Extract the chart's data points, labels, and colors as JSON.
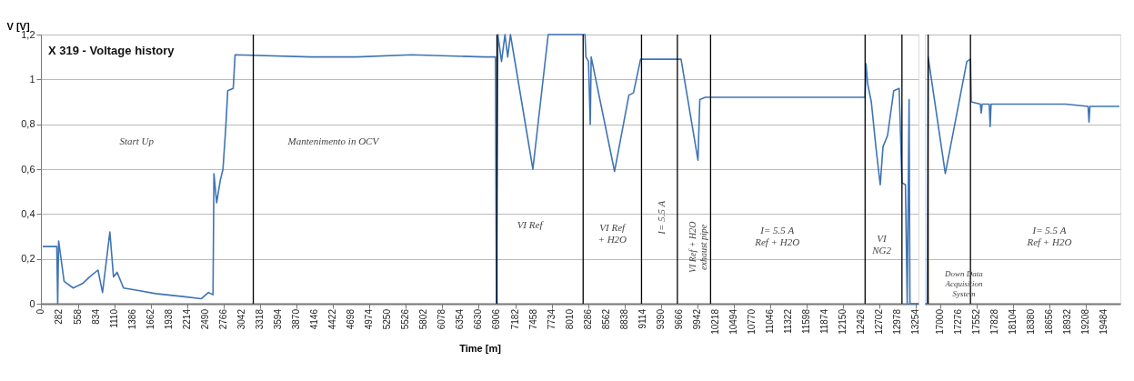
{
  "chart_data": [
    {
      "type": "line",
      "title": "X 319 - Voltage history",
      "xlabel": "Time [m]",
      "ylabel": "V [V]",
      "x": [
        28,
        240,
        254,
        268,
        351,
        489,
        630,
        740,
        864,
        933,
        1044,
        1099,
        1154,
        1251,
        1458,
        1737,
        2151,
        2427,
        2537,
        2606,
        2620,
        2661,
        2716,
        2757,
        2802,
        2829,
        2912,
        2940,
        4088,
        4778,
        5610,
        6717,
        6883,
        6897,
        6920,
        6975,
        7027,
        7069,
        7110,
        7450,
        7682,
        8239,
        8253,
        8292,
        8319,
        8333,
        8687,
        8904,
        8973,
        9081,
        9694,
        9950,
        9978,
        10061,
        12481,
        12495,
        12520,
        12575,
        12644,
        12710,
        12752,
        12821,
        12915,
        12997,
        13039,
        13092,
        13119,
        13147,
        13160,
        13290
      ],
      "series": [
        {
          "color": "#3f74b5",
          "values": [
            0.255,
            0.255,
            0,
            0.28,
            0.1,
            0.07,
            0.09,
            0.12,
            0.15,
            0.05,
            0.32,
            0.12,
            0.14,
            0.07,
            0.06,
            0.045,
            0.032,
            0.022,
            0.05,
            0.04,
            0.58,
            0.45,
            0.55,
            0.6,
            0.8,
            0.95,
            0.96,
            1.11,
            1.1,
            1.1,
            1.11,
            1.1,
            1.1,
            0,
            1.2,
            1.08,
            1.2,
            1.1,
            1.2,
            0.6,
            1.2,
            1.2,
            1.1,
            1.08,
            0.8,
            1.1,
            0.59,
            0.93,
            0.94,
            1.09,
            1.09,
            0.64,
            0.91,
            0.92,
            0.92,
            1.07,
            0.98,
            0.9,
            0.7,
            0.53,
            0.7,
            0.75,
            0.95,
            0.96,
            0.54,
            0.53,
            0,
            0.91,
            0,
            0
          ]
        }
      ],
      "xlim": [
        0,
        13290
      ],
      "xticks": [
        0,
        282,
        558,
        834,
        1110,
        1386,
        1662,
        1938,
        2214,
        2490,
        2766,
        3042,
        3318,
        3594,
        3870,
        4146,
        4422,
        4698,
        4974,
        5250,
        5526,
        5802,
        6078,
        6354,
        6630,
        6906,
        7182,
        7458,
        7734,
        8010,
        8286,
        8562,
        8838,
        9114,
        9390,
        9666,
        9942,
        10218,
        10494,
        10770,
        11046,
        11322,
        11598,
        11874,
        12150,
        12426,
        12702,
        12978,
        13254
      ],
      "ylim": [
        0,
        1.2
      ],
      "yticks": [
        0,
        {
          "value": 0.2,
          "label": "0,2"
        },
        {
          "value": 0.4,
          "label": "0,4"
        },
        {
          "value": 0.6,
          "label": "0,6"
        },
        {
          "value": 0.8,
          "label": "0,8"
        },
        1,
        {
          "value": 1.2,
          "label": "1,2"
        }
      ],
      "grid": "y",
      "ref_lines": [
        {
          "axis": "x",
          "value": 3216,
          "color": "#000000"
        },
        {
          "axis": "x",
          "value": 6906,
          "color": "#000000"
        },
        {
          "axis": "x",
          "value": 8211,
          "color": "#000000"
        },
        {
          "axis": "x",
          "value": 9095,
          "color": "#000000"
        },
        {
          "axis": "x",
          "value": 9638,
          "color": "#000000"
        },
        {
          "axis": "x",
          "value": 10141,
          "color": "#000000"
        },
        {
          "axis": "x",
          "value": 12481,
          "color": "#000000"
        },
        {
          "axis": "x",
          "value": 13039,
          "color": "#000000"
        }
      ],
      "annotations": [
        "Start Up",
        "Mantenimento in OCV",
        "VI Ref",
        "VI Ref\n+ H2O",
        "I= 5.5 A",
        "VI Ref + H2O\nexhaust pipe",
        "I= 5.5 A\nRef + H2O",
        "VI\nNG2"
      ]
    },
    {
      "type": "line",
      "x": [
        16780,
        16806,
        16820,
        17080,
        17406,
        17461,
        17472,
        17610,
        17624,
        17638,
        17745,
        17759,
        17773,
        17949,
        18902,
        19242,
        19256,
        19270,
        19716
      ],
      "series": [
        {
          "color": "#3f74b5",
          "values": [
            0,
            0,
            1.1,
            0.58,
            1.08,
            1.09,
            0.9,
            0.89,
            0.85,
            0.89,
            0.89,
            0.79,
            0.89,
            0.89,
            0.89,
            0.88,
            0.81,
            0.88,
            0.88
          ]
        }
      ],
      "xlim": [
        16770,
        19730
      ],
      "xticks": [
        17000,
        17276,
        17552,
        17828,
        18104,
        18380,
        18656,
        18932,
        19208,
        19484
      ],
      "ylim": [
        0,
        1.2
      ],
      "yticks": [
        0,
        0.2,
        0.4,
        0.6,
        0.8,
        1,
        1.2
      ],
      "tick_labels": "x",
      "grid": "y",
      "ref_lines": [
        {
          "axis": "x",
          "value": 16820,
          "color": "#000000"
        },
        {
          "axis": "x",
          "value": 17461,
          "color": "#000000"
        }
      ],
      "annotations": [
        "Down Data\nAcquisition\nSystem",
        "I= 5.5 A\nRef + H2O"
      ]
    }
  ]
}
